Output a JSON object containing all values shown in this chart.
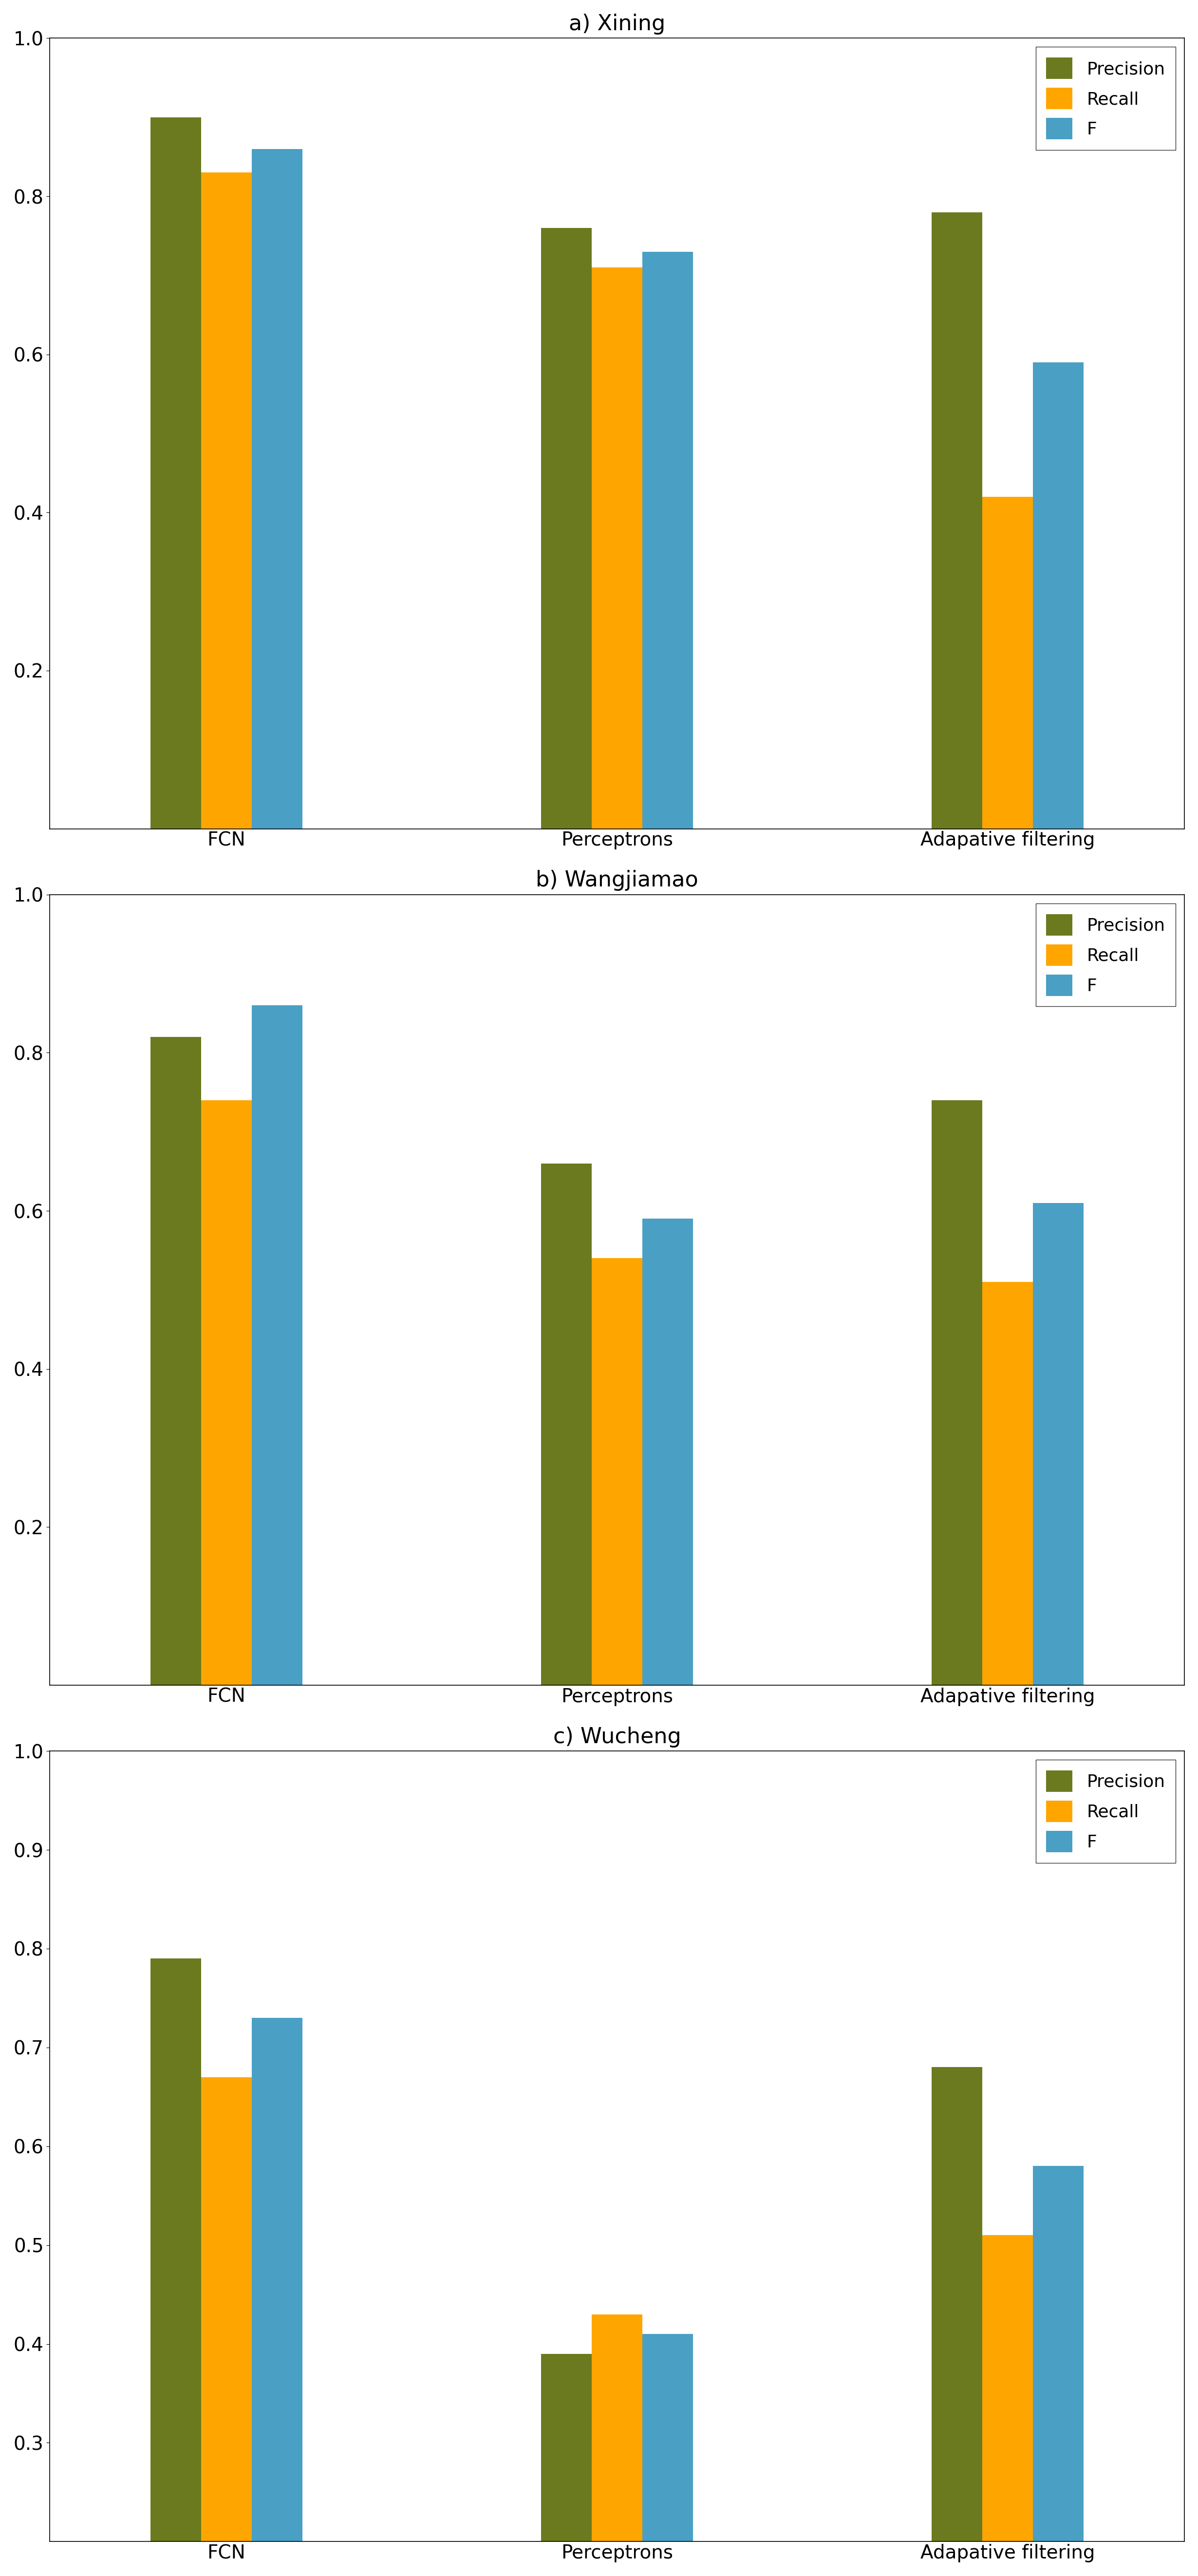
{
  "subplots": [
    {
      "title": "a) Xining",
      "ylim": [
        0.0,
        1.0
      ],
      "yticks": [
        0.2,
        0.4,
        0.6,
        0.8,
        1.0
      ],
      "groups": [
        "FCN",
        "Perceptrons",
        "Adapative filtering"
      ],
      "precision": [
        0.9,
        0.76,
        0.78
      ],
      "recall": [
        0.83,
        0.71,
        0.42
      ],
      "f": [
        0.86,
        0.73,
        0.59
      ]
    },
    {
      "title": "b) Wangjiamao",
      "ylim": [
        0.0,
        1.0
      ],
      "yticks": [
        0.2,
        0.4,
        0.6,
        0.8,
        1.0
      ],
      "groups": [
        "FCN",
        "Perceptrons",
        "Adapative filtering"
      ],
      "precision": [
        0.82,
        0.66,
        0.74
      ],
      "recall": [
        0.74,
        0.54,
        0.51
      ],
      "f": [
        0.86,
        0.59,
        0.61
      ]
    },
    {
      "title": "c) Wucheng",
      "ylim": [
        0.2,
        1.0
      ],
      "yticks": [
        0.3,
        0.4,
        0.5,
        0.6,
        0.7,
        0.8,
        0.9,
        1.0
      ],
      "groups": [
        "FCN",
        "Perceptrons",
        "Adapative filtering"
      ],
      "precision": [
        0.79,
        0.39,
        0.68
      ],
      "recall": [
        0.67,
        0.43,
        0.51
      ],
      "f": [
        0.73,
        0.41,
        0.58
      ]
    }
  ],
  "colors": {
    "precision": "#6b7a1e",
    "recall": "#ffa500",
    "f": "#4a9fc4"
  },
  "legend_labels": [
    "Precision",
    "Recall",
    "F"
  ],
  "bar_width": 0.22,
  "fontsize_title": 32,
  "fontsize_tick": 28,
  "fontsize_legend": 26,
  "fontsize_xlabel": 28
}
